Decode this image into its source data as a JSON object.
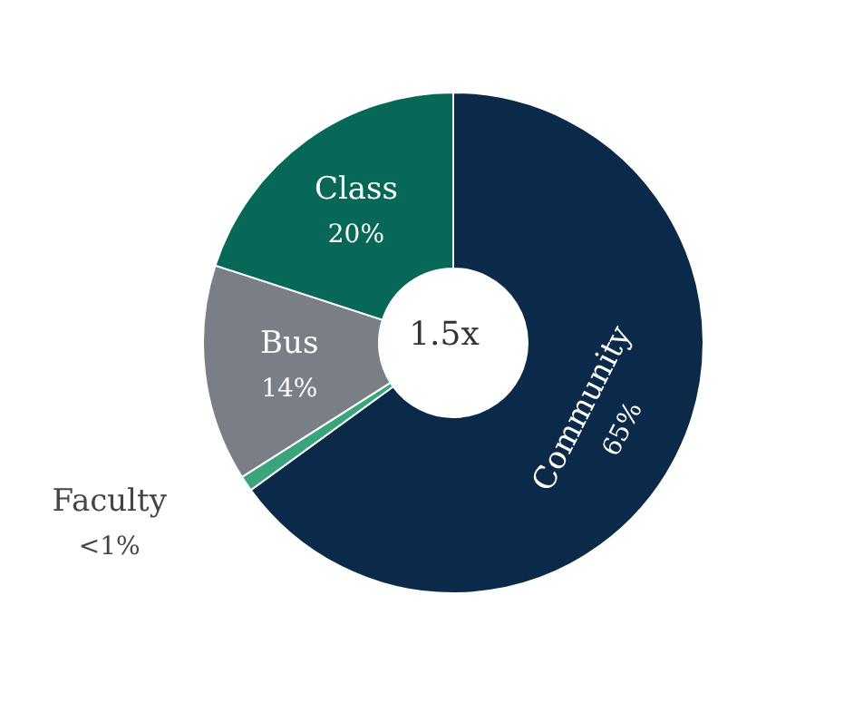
{
  "chart_data": {
    "type": "donut",
    "categories": [
      "Community",
      "Faculty",
      "Bus",
      "Class"
    ],
    "values": [
      65,
      1,
      14,
      20
    ],
    "colors": [
      "#0b2a4a",
      "#3aa57a",
      "#7a7f87",
      "#076857"
    ],
    "value_labels": [
      "65%",
      "<1%",
      "14%",
      "20%"
    ],
    "annotations": [
      "1.5x"
    ],
    "legend": false
  }
}
